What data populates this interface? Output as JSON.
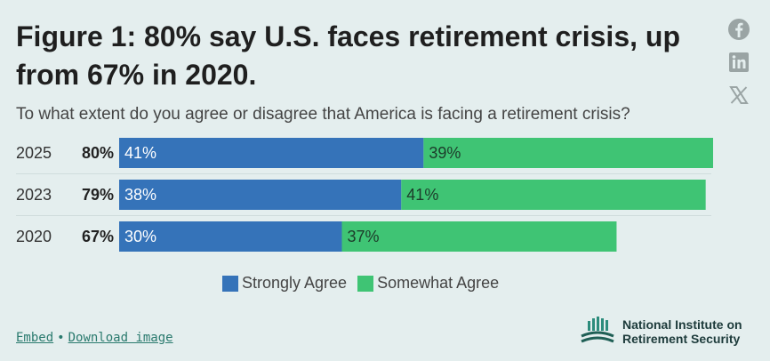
{
  "header": {
    "title": "Figure 1: 80% say U.S. faces retirement crisis, up from 67% in 2020.",
    "subtitle": "To what extent do you agree or disagree that America is facing a retirement crisis?"
  },
  "share": {
    "facebook_icon": "facebook-icon",
    "linkedin_icon": "linkedin-icon",
    "x_icon": "x-icon"
  },
  "chart_data": {
    "type": "bar",
    "orientation": "horizontal",
    "stacked": true,
    "categories": [
      "2025",
      "2023",
      "2020"
    ],
    "totals": [
      "80%",
      "79%",
      "67%"
    ],
    "series": [
      {
        "name": "Strongly Agree",
        "values": [
          41,
          38,
          30
        ],
        "labels": [
          "41%",
          "38%",
          "30%"
        ],
        "color": "#3573b9"
      },
      {
        "name": "Somewhat Agree",
        "values": [
          39,
          41,
          37
        ],
        "labels": [
          "39%",
          "41%",
          "37%"
        ],
        "color": "#3fc474"
      }
    ],
    "xlim": [
      0,
      80
    ],
    "grid": false,
    "legend_position": "bottom-center"
  },
  "footer": {
    "embed_label": "Embed",
    "separator": "•",
    "download_label": "Download image"
  },
  "brand": {
    "name_line1": "National Institute on",
    "name_line2": "Retirement Security"
  },
  "colors": {
    "background": "#e4eeee",
    "strongly": "#3573b9",
    "somewhat": "#3fc474",
    "link": "#2a7a6e",
    "icon": "#9aa4a4"
  }
}
